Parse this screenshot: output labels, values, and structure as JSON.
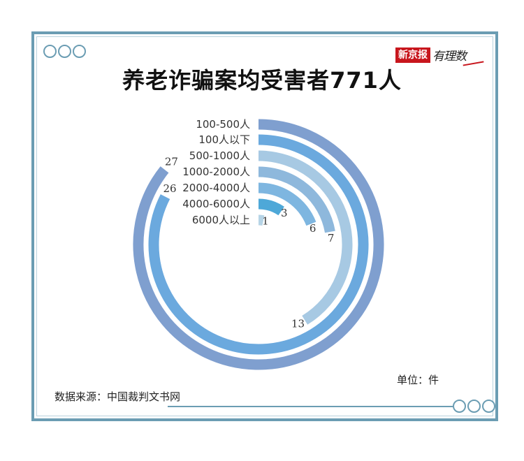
{
  "title": "养老诈骗案均受害者771人",
  "brand": {
    "box_text": "新京报",
    "script_text": "有理数"
  },
  "source": "数据来源：中国裁判文书网",
  "unit": "单位：件",
  "colors": {
    "frame": "#6b9db3",
    "brand_red": "#c8161d"
  },
  "chart_data": {
    "type": "radial-bar",
    "categories": [
      "100-500人",
      "100人以下",
      "500-1000人",
      "1000-2000人",
      "2000-4000人",
      "4000-6000人",
      "6000人以上"
    ],
    "values": [
      27,
      26,
      13,
      7,
      6,
      3,
      1
    ],
    "value_labels": [
      "27",
      "26",
      "13",
      "7",
      "6",
      "3",
      "1"
    ],
    "colors": [
      "#7f9fcf",
      "#6ba9de",
      "#a7c9e3",
      "#8eb8dc",
      "#7eb6e0",
      "#4ea8d8",
      "#b6d4e6"
    ],
    "unit": "单位：件"
  }
}
